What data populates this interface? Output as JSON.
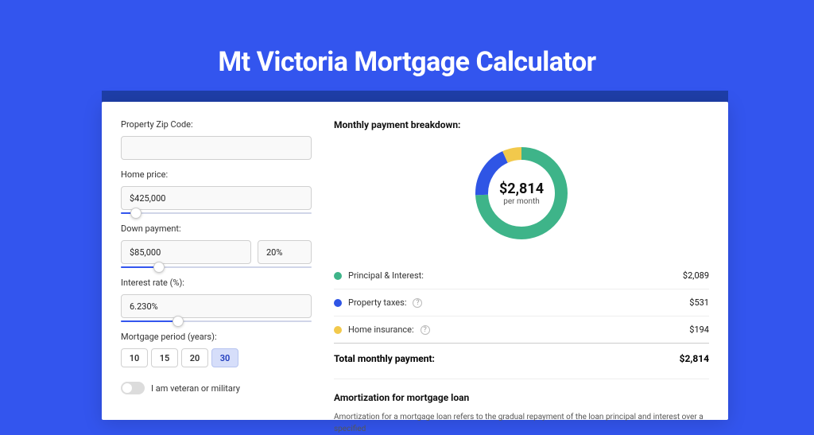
{
  "page": {
    "title": "Mt Victoria Mortgage Calculator",
    "background_color": "#3355ee",
    "shadow_color": "#1e3ea8"
  },
  "form": {
    "zip_label": "Property Zip Code:",
    "zip_value": "",
    "home_price_label": "Home price:",
    "home_price_value": "$425,000",
    "home_price_slider_pct": 8,
    "down_label": "Down payment:",
    "down_amount": "$85,000",
    "down_pct": "20%",
    "down_slider_pct": 20,
    "rate_label": "Interest rate (%):",
    "rate_value": "6.230%",
    "rate_slider_pct": 30,
    "period_label": "Mortgage period (years):",
    "periods": [
      "10",
      "15",
      "20",
      "30"
    ],
    "period_active_index": 3,
    "veteran_label": "I am veteran or military",
    "veteran_on": false
  },
  "result": {
    "section_title": "Monthly payment breakdown:",
    "total_value": "$2,814",
    "per_month_label": "per month",
    "donut": {
      "segments": [
        {
          "label": "Principal & Interest:",
          "value": 2089,
          "display": "$2,089",
          "color": "#3eb489",
          "pct": 74.2,
          "has_help": false
        },
        {
          "label": "Property taxes:",
          "value": 531,
          "display": "$531",
          "color": "#2f55e5",
          "pct": 18.9,
          "has_help": true
        },
        {
          "label": "Home insurance:",
          "value": 194,
          "display": "$194",
          "color": "#f2c94c",
          "pct": 6.9,
          "has_help": true
        }
      ],
      "stroke_width": 16,
      "radius": 50
    },
    "total_label": "Total monthly payment:",
    "total_display": "$2,814"
  },
  "amortization": {
    "title": "Amortization for mortgage loan",
    "text": "Amortization for a mortgage loan refers to the gradual repayment of the loan principal and interest over a specified"
  }
}
